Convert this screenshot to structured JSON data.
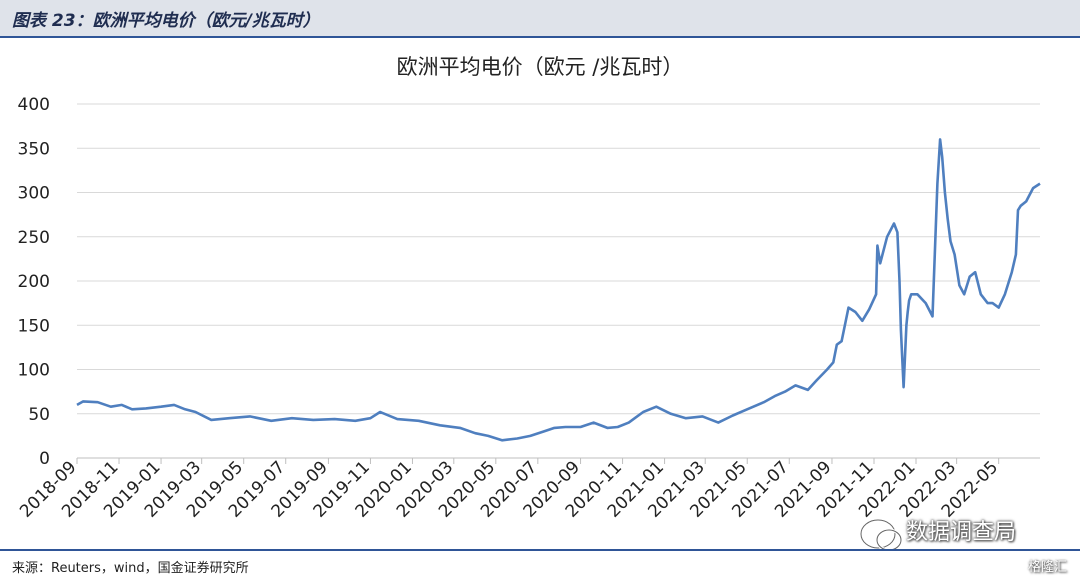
{
  "figure": {
    "title": "图表 23：欧洲平均电价（欧元/兆瓦时）",
    "source": "来源：Reuters，wind，国金证券研究所"
  },
  "watermark": {
    "text": "数据调查局",
    "sub": "格隆汇",
    "icon": "wechat-icon"
  },
  "colors": {
    "line": "#4f7fbf",
    "header_bg": "#dfe3ea",
    "rule": "#2f5597",
    "grid": "#d9d9d9"
  },
  "chart_data": {
    "type": "line",
    "title": "欧洲平均电价（欧元 /兆瓦时）",
    "ylim": [
      0,
      400
    ],
    "yticks": [
      0,
      50,
      100,
      150,
      200,
      250,
      300,
      350,
      400
    ],
    "grid": "horizontal",
    "xticks": [
      "2018-09",
      "2018-11",
      "2019-01",
      "2019-03",
      "2019-05",
      "2019-07",
      "2019-09",
      "2019-11",
      "2020-01",
      "2020-03",
      "2020-05",
      "2020-07",
      "2020-09",
      "2020-11",
      "2021-01",
      "2021-03",
      "2021-05",
      "2021-07",
      "2021-09",
      "2021-11",
      "2022-01",
      "2022-03",
      "2022-05"
    ],
    "x": [
      "2018-09-01",
      "2018-09-10",
      "2018-10-01",
      "2018-10-20",
      "2018-11-05",
      "2018-11-20",
      "2018-12-10",
      "2019-01-01",
      "2019-01-20",
      "2019-02-05",
      "2019-02-20",
      "2019-03-15",
      "2019-04-10",
      "2019-05-10",
      "2019-06-10",
      "2019-07-10",
      "2019-08-10",
      "2019-09-10",
      "2019-10-10",
      "2019-11-01",
      "2019-11-15",
      "2019-12-10",
      "2020-01-10",
      "2020-02-10",
      "2020-03-10",
      "2020-04-01",
      "2020-04-20",
      "2020-05-10",
      "2020-06-01",
      "2020-06-20",
      "2020-07-10",
      "2020-07-25",
      "2020-08-10",
      "2020-09-01",
      "2020-09-20",
      "2020-10-10",
      "2020-10-25",
      "2020-11-10",
      "2020-12-01",
      "2020-12-20",
      "2021-01-10",
      "2021-02-01",
      "2021-02-25",
      "2021-03-20",
      "2021-04-10",
      "2021-05-01",
      "2021-05-25",
      "2021-06-10",
      "2021-06-25",
      "2021-07-10",
      "2021-07-28",
      "2021-08-10",
      "2021-08-25",
      "2021-09-03",
      "2021-09-08",
      "2021-09-15",
      "2021-09-25",
      "2021-10-05",
      "2021-10-15",
      "2021-10-25",
      "2021-11-04",
      "2021-11-06",
      "2021-11-10",
      "2021-11-20",
      "2021-11-30",
      "2021-12-05",
      "2021-12-08",
      "2021-12-10",
      "2021-12-14",
      "2021-12-18",
      "2021-12-20",
      "2021-12-22",
      "2021-12-25",
      "2022-01-03",
      "2022-01-15",
      "2022-01-25",
      "2022-02-01",
      "2022-02-05",
      "2022-02-08",
      "2022-02-12",
      "2022-02-16",
      "2022-02-20",
      "2022-02-26",
      "2022-03-05",
      "2022-03-12",
      "2022-03-20",
      "2022-03-28",
      "2022-04-05",
      "2022-04-15",
      "2022-04-22",
      "2022-05-01",
      "2022-05-10",
      "2022-05-20",
      "2022-05-26",
      "2022-05-29",
      "2022-06-02",
      "2022-06-10",
      "2022-06-20",
      "2022-06-30"
    ],
    "series": [
      {
        "values": [
          60,
          64,
          63,
          58,
          60,
          55,
          56,
          58,
          60,
          55,
          52,
          43,
          45,
          47,
          42,
          45,
          43,
          44,
          42,
          45,
          52,
          44,
          42,
          37,
          34,
          28,
          25,
          20,
          22,
          25,
          30,
          34,
          35,
          35,
          40,
          34,
          35,
          40,
          52,
          58,
          50,
          45,
          47,
          40,
          48,
          55,
          63,
          70,
          75,
          82,
          77,
          88,
          100,
          108,
          128,
          132,
          170,
          165,
          155,
          168,
          185,
          240,
          220,
          250,
          265,
          255,
          200,
          145,
          80,
          150,
          165,
          178,
          185,
          185,
          175,
          160,
          310,
          360,
          340,
          300,
          270,
          245,
          230,
          195,
          185,
          205,
          210,
          185,
          175,
          175,
          170,
          185,
          210,
          230,
          280,
          285,
          290,
          305,
          310
        ]
      }
    ]
  }
}
